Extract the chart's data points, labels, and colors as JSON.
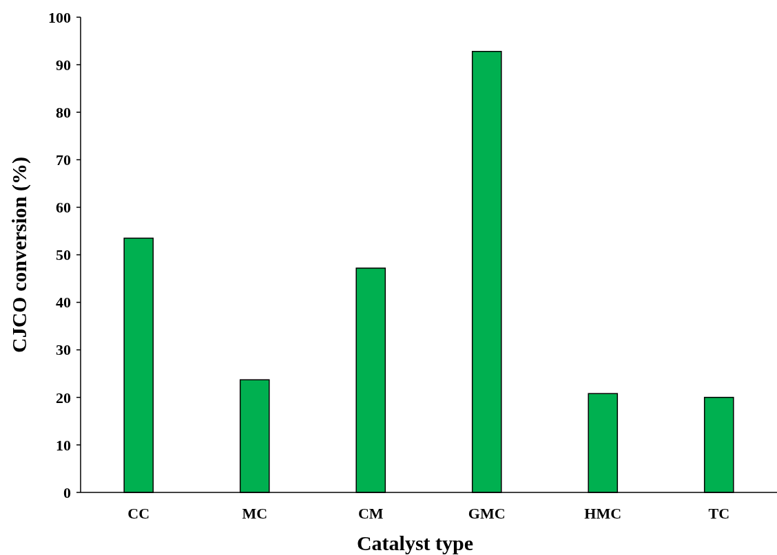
{
  "chart_data": {
    "type": "bar",
    "xlabel": "Catalyst type",
    "ylabel": "CJCO conversion (%)",
    "categories": [
      "CC",
      "MC",
      "CM",
      "GMC",
      "HMC",
      "TC"
    ],
    "values": [
      53.5,
      23.7,
      47.2,
      92.8,
      20.8,
      20.0
    ],
    "color": "#00b050",
    "ylim": [
      0,
      100
    ],
    "yticks": [
      0,
      10,
      20,
      30,
      40,
      50,
      60,
      70,
      80,
      90,
      100
    ],
    "grid": false
  }
}
